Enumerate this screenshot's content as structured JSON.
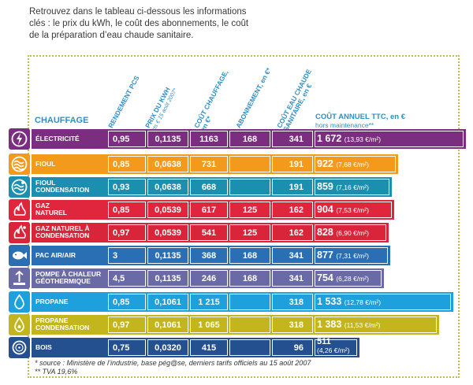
{
  "intro": {
    "line1": "Retrouvez dans le tableau ci-dessous les informations",
    "line2": "clés : le prix du kWh, le coût des abonnements, le coût",
    "line3": "de la préparation d’eau chaude sanitaire."
  },
  "table": {
    "section_title": "CHAUFFAGE",
    "columns": {
      "rendement": "RENDEMENT PCS",
      "prix_kwh": "PRIX DU KWH",
      "prix_kwh_sub": "cts € 15 août 2007*",
      "cout_chauffage": "COÛT CHAUFFAGE, en €*",
      "abonnement": "ABONNEMENT, en €*",
      "eau_chaude": "COÛT EAU CHAUDE SANITAIRE, en €",
      "cout_annuel": "COÛT ANNUEL TTC, en €",
      "cout_annuel_sub": "hors maintenance**"
    },
    "rows": [
      {
        "label1": "ÉLECTRICITÉ",
        "label2": "",
        "color": "#7b2d7f",
        "icon": "lightning-icon",
        "rendement": "0,95",
        "prix": "0,1135",
        "chauffage": "1163",
        "abonnement": "168",
        "eau": "341",
        "total": "1 672",
        "per_m2": "(13,93 €/m²)"
      },
      {
        "label1": "FIOUL",
        "label2": "",
        "color": "#f39a1c",
        "icon": "oil-waves-icon",
        "rendement": "0,85",
        "prix": "0,0638",
        "chauffage": "731",
        "abonnement": "",
        "eau": "191",
        "total": "922",
        "per_m2": "(7,68 €/m²)"
      },
      {
        "label1": "FIOUL",
        "label2": "CONDENSATION",
        "color": "#1b8fb0",
        "icon": "oil-condensation-icon",
        "rendement": "0,93",
        "prix": "0,0638",
        "chauffage": "668",
        "abonnement": "",
        "eau": "191",
        "total": "859",
        "per_m2": "(7,16 €/m²)"
      },
      {
        "label1": "GAZ",
        "label2": "NATUREL",
        "color": "#e0263d",
        "icon": "gas-flame-icon",
        "rendement": "0,85",
        "prix": "0,0539",
        "chauffage": "617",
        "abonnement": "125",
        "eau": "162",
        "total": "904",
        "per_m2": "(7,53 €/m²)"
      },
      {
        "label1": "GAZ NATUREL À",
        "label2": "CONDENSATION",
        "color": "#d9253a",
        "icon": "gas-condensation-icon",
        "rendement": "0,97",
        "prix": "0,0539",
        "chauffage": "541",
        "abonnement": "125",
        "eau": "162",
        "total": "828",
        "per_m2": "(6,90 €/m²)"
      },
      {
        "label1": "PAC AIR/AIR",
        "label2": "",
        "color": "#2a6fb4",
        "icon": "heat-pump-fish-icon",
        "rendement": "3",
        "prix": "0,1135",
        "chauffage": "368",
        "abonnement": "168",
        "eau": "341",
        "total": "877",
        "per_m2": "(7,31 €/m²)"
      },
      {
        "label1": "POMPE À CHALEUR",
        "label2": "GÉOTHERMIQUE",
        "color": "#6a6aa6",
        "icon": "geothermal-icon",
        "rendement": "4,5",
        "prix": "0,1135",
        "chauffage": "246",
        "abonnement": "168",
        "eau": "341",
        "total": "754",
        "per_m2": "(6,28 €/m²)"
      },
      {
        "label1": "PROPANE",
        "label2": "",
        "color": "#1da0db",
        "icon": "propane-drop-icon",
        "rendement": "0,85",
        "prix": "0,1061",
        "chauffage": "1 215",
        "abonnement": "",
        "eau": "318",
        "total": "1 533",
        "per_m2": "(12,78 €/m²)"
      },
      {
        "label1": "PROPANE",
        "label2": "CONDENSATION",
        "color": "#c2b61c",
        "icon": "propane-condensation-icon",
        "rendement": "0,97",
        "prix": "0,1061",
        "chauffage": "1 065",
        "abonnement": "",
        "eau": "318",
        "total": "1 383",
        "per_m2": "(11,53 €/m²)"
      },
      {
        "label1": "BOIS",
        "label2": "",
        "color": "#24508f",
        "icon": "wood-log-icon",
        "rendement": "0,75",
        "prix": "0,0320",
        "chauffage": "415",
        "abonnement": "",
        "eau": "96",
        "total": "511",
        "per_m2": "(4,26 €/m²)"
      }
    ]
  },
  "footnotes": {
    "source": "* source : Ministère de l’industrie, base pég@se, derniers tarifs officiels au 15 août 2007",
    "tva": "** TVA 19,6%"
  }
}
